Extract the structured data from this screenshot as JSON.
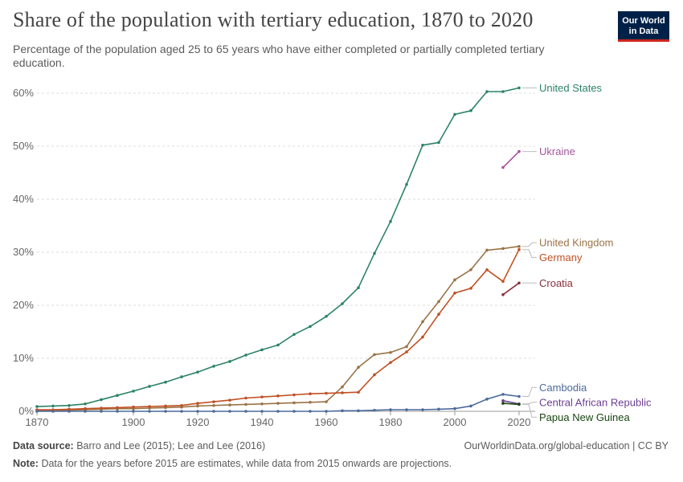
{
  "header": {
    "title": "Share of the population with tertiary education, 1870 to 2020",
    "subtitle": "Percentage of the population aged 25 to 65 years who have either completed or partially completed tertiary education.",
    "logo_line1": "Our World",
    "logo_line2": "in Data"
  },
  "footer": {
    "source_label": "Data source:",
    "source_text": "Barro and Lee (2015); Lee and Lee (2016)",
    "url_text": "OurWorldinData.org/global-education | CC BY",
    "note_label": "Note:",
    "note_text": "Data for the years before 2015 are estimates, while data from 2015 onwards are projections."
  },
  "chart_data": {
    "type": "line",
    "title": "Share of the population with tertiary education, 1870 to 2020",
    "xlim": [
      1870,
      2025
    ],
    "ylim": [
      0,
      60
    ],
    "y_ticks": [
      0,
      10,
      20,
      30,
      40,
      50,
      60
    ],
    "y_tick_labels": [
      "0%",
      "10%",
      "20%",
      "30%",
      "40%",
      "50%",
      "60%"
    ],
    "x_ticks": [
      1870,
      1900,
      1920,
      1940,
      1960,
      1980,
      2000,
      2020
    ],
    "x_tick_labels": [
      "1870",
      "1900",
      "1920",
      "1940",
      "1960",
      "1980",
      "2000",
      "2020"
    ],
    "grid": "horizontal dashed",
    "legend": "right, labels at line ends",
    "series": [
      {
        "name": "United States",
        "color": "#2c8465",
        "x": [
          1870,
          1875,
          1880,
          1885,
          1890,
          1895,
          1900,
          1905,
          1910,
          1915,
          1920,
          1925,
          1930,
          1935,
          1940,
          1945,
          1950,
          1955,
          1960,
          1965,
          1970,
          1975,
          1980,
          1985,
          1990,
          1995,
          2000,
          2005,
          2010,
          2015,
          2020
        ],
        "y": [
          0.9,
          1.0,
          1.1,
          1.4,
          2.2,
          3.0,
          3.8,
          4.7,
          5.5,
          6.5,
          7.4,
          8.5,
          9.4,
          10.6,
          11.6,
          12.5,
          14.5,
          16.0,
          17.9,
          20.3,
          23.3,
          29.8,
          35.8,
          42.8,
          50.2,
          50.7,
          56.0,
          56.7,
          60.3,
          60.3,
          61.0
        ]
      },
      {
        "name": "Ukraine",
        "color": "#a2559c",
        "x": [
          2015,
          2020
        ],
        "y": [
          46.0,
          49.0
        ]
      },
      {
        "name": "United Kingdom",
        "color": "#9a7346",
        "x": [
          1870,
          1875,
          1880,
          1885,
          1890,
          1895,
          1900,
          1905,
          1910,
          1915,
          1920,
          1925,
          1930,
          1935,
          1940,
          1945,
          1950,
          1955,
          1960,
          1965,
          1970,
          1975,
          1980,
          1985,
          1990,
          1995,
          2000,
          2005,
          2010,
          2015,
          2020
        ],
        "y": [
          0.2,
          0.2,
          0.2,
          0.3,
          0.4,
          0.5,
          0.5,
          0.6,
          0.7,
          0.8,
          1.0,
          1.1,
          1.2,
          1.3,
          1.4,
          1.5,
          1.6,
          1.7,
          1.8,
          4.6,
          8.3,
          10.7,
          11.1,
          12.2,
          16.9,
          20.7,
          24.8,
          26.7,
          30.4,
          30.7,
          31.1
        ]
      },
      {
        "name": "Germany",
        "color": "#c15023",
        "x": [
          1870,
          1875,
          1880,
          1885,
          1890,
          1895,
          1900,
          1905,
          1910,
          1915,
          1920,
          1925,
          1930,
          1935,
          1940,
          1945,
          1950,
          1955,
          1960,
          1965,
          1970,
          1975,
          1980,
          1985,
          1990,
          1995,
          2000,
          2005,
          2010,
          2015,
          2020
        ],
        "y": [
          0.3,
          0.3,
          0.4,
          0.5,
          0.6,
          0.7,
          0.8,
          0.9,
          1.0,
          1.1,
          1.5,
          1.8,
          2.1,
          2.5,
          2.7,
          2.9,
          3.1,
          3.3,
          3.4,
          3.5,
          3.6,
          6.9,
          9.2,
          11.2,
          14.0,
          18.3,
          22.3,
          23.2,
          26.7,
          24.5,
          30.5
        ]
      },
      {
        "name": "Croatia",
        "color": "#883039",
        "x": [
          2015,
          2020
        ],
        "y": [
          22.0,
          24.2
        ]
      },
      {
        "name": "Cambodia",
        "color": "#4c6a9c",
        "x": [
          1870,
          1875,
          1880,
          1885,
          1890,
          1895,
          1900,
          1905,
          1910,
          1915,
          1920,
          1925,
          1930,
          1935,
          1940,
          1945,
          1950,
          1955,
          1960,
          1965,
          1970,
          1975,
          1980,
          1985,
          1990,
          1995,
          2000,
          2005,
          2010,
          2015,
          2020
        ],
        "y": [
          0,
          0,
          0,
          0,
          0,
          0,
          0,
          0,
          0,
          0,
          0,
          0,
          0,
          0,
          0,
          0,
          0,
          0,
          0,
          0.1,
          0.1,
          0.2,
          0.3,
          0.3,
          0.3,
          0.4,
          0.5,
          1.0,
          2.3,
          3.2,
          2.8
        ]
      },
      {
        "name": "Central African Republic",
        "color": "#6d3e91",
        "x": [
          2015,
          2020
        ],
        "y": [
          2.0,
          1.4
        ]
      },
      {
        "name": "Papua New Guinea",
        "color": "#18470f",
        "x": [
          2015,
          2020
        ],
        "y": [
          1.5,
          1.3
        ]
      }
    ],
    "end_labels": [
      {
        "name": "United States",
        "y_label": 61.0
      },
      {
        "name": "Ukraine",
        "y_label": 49.0
      },
      {
        "name": "United Kingdom",
        "y_label": 31.8
      },
      {
        "name": "Germany",
        "y_label": 29.0
      },
      {
        "name": "Croatia",
        "y_label": 24.2
      },
      {
        "name": "Cambodia",
        "y_label": 4.5
      },
      {
        "name": "Central African Republic",
        "y_label": 1.7
      },
      {
        "name": "Papua New Guinea",
        "y_label": -1.1
      }
    ]
  }
}
